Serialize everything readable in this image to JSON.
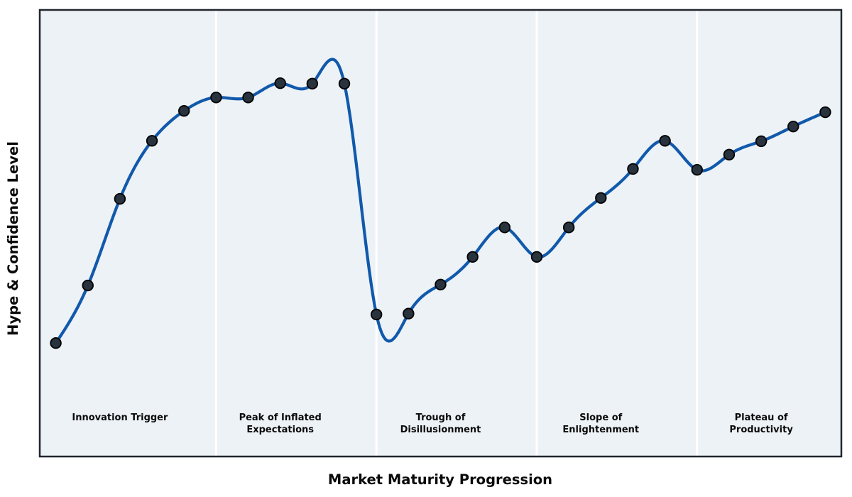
{
  "chart_data": {
    "type": "line",
    "title": "",
    "xlabel": "Market Maturity Progression",
    "ylabel": "Hype & Confidence Level",
    "x": [
      0,
      1,
      2,
      3,
      4,
      5,
      6,
      7,
      8,
      9,
      10,
      11,
      12,
      13,
      14,
      15,
      16,
      17,
      18,
      19,
      20,
      21,
      22,
      23,
      24
    ],
    "series": [
      {
        "name": "Hype & Confidence Level",
        "values": [
          25.4,
          38.3,
          57.7,
          70.7,
          77.4,
          80.4,
          80.4,
          83.6,
          83.5,
          83.5,
          31.8,
          32.0,
          38.5,
          44.7,
          51.3,
          44.7,
          51.3,
          57.9,
          64.4,
          70.7,
          64.2,
          67.6,
          70.6,
          73.9,
          77.1
        ]
      }
    ],
    "xlim": [
      -0.5,
      24.5
    ],
    "ylim": [
      0,
      100
    ],
    "grid": false,
    "legend": false,
    "ticks": "none",
    "smoothing": "cubic-spline",
    "marker": "circle",
    "phases": [
      {
        "label_lines": [
          "Innovation Trigger"
        ],
        "center_x": 2
      },
      {
        "label_lines": [
          "Peak of Inflated",
          "Expectations"
        ],
        "center_x": 7
      },
      {
        "label_lines": [
          "Trough of",
          "Disillusionment"
        ],
        "center_x": 12
      },
      {
        "label_lines": [
          "Slope of",
          "Enlightenment"
        ],
        "center_x": 17
      },
      {
        "label_lines": [
          "Plateau of",
          "Productivity"
        ],
        "center_x": 22
      }
    ],
    "phase_boundaries_x": [
      5,
      10,
      15,
      20
    ],
    "colors": {
      "line": "#1159ab",
      "marker_fill": "#28333e",
      "marker_edge": "#000000",
      "band_fill": "#edf2f7",
      "band_separator": "#ffffff",
      "frame": "#21262d",
      "label_text": "#0a0a0a"
    }
  }
}
